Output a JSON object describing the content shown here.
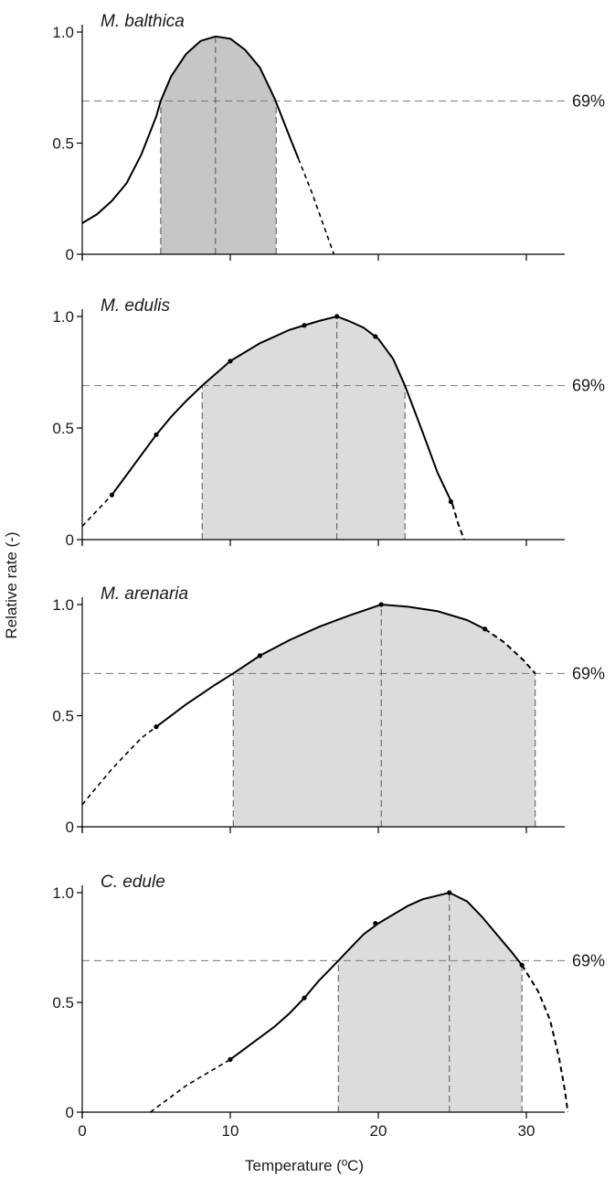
{
  "figure": {
    "xlabel": "Temperature (ºC)",
    "ylabel": "Relative rate (-)"
  },
  "chart_data": [
    {
      "type": "line",
      "title": "M. balthica",
      "xlim": [
        0,
        35
      ],
      "ylim": [
        0,
        1.0
      ],
      "yticks": [
        "0",
        "0.5",
        "1.0"
      ],
      "xticks": [
        0,
        10,
        20,
        30
      ],
      "xtick_labels_shown": false,
      "fill_color": "#c6c6c6",
      "reference_line": {
        "y": 0.69,
        "label": "69%"
      },
      "optimum_x": 9.0,
      "range_69": [
        5.3,
        13.1
      ],
      "curve_solid": [
        [
          0,
          0.14
        ],
        [
          1,
          0.18
        ],
        [
          2,
          0.24
        ],
        [
          3,
          0.32
        ],
        [
          4,
          0.45
        ],
        [
          5,
          0.62
        ],
        [
          5.3,
          0.69
        ],
        [
          6,
          0.8
        ],
        [
          7,
          0.9
        ],
        [
          8,
          0.96
        ],
        [
          9,
          0.98
        ],
        [
          10,
          0.97
        ],
        [
          11,
          0.92
        ],
        [
          12,
          0.84
        ],
        [
          13,
          0.7
        ],
        [
          14,
          0.53
        ],
        [
          14.6,
          0.43
        ]
      ],
      "curve_dashed": [
        [
          14.6,
          0.43
        ],
        [
          15.5,
          0.28
        ],
        [
          16.3,
          0.13
        ],
        [
          17.0,
          0.0
        ]
      ],
      "points": []
    },
    {
      "type": "line",
      "title": "M. edulis",
      "xlim": [
        0,
        35
      ],
      "ylim": [
        0,
        1.0
      ],
      "yticks": [
        "0",
        "0.5",
        "1.0"
      ],
      "xticks": [
        0,
        10,
        20,
        30
      ],
      "xtick_labels_shown": false,
      "fill_color": "#dcdcdc",
      "reference_line": {
        "y": 0.69,
        "label": "69%"
      },
      "optimum_x": 17.2,
      "range_69": [
        8.1,
        21.8
      ],
      "curve_solid": [
        [
          2,
          0.2
        ],
        [
          3,
          0.29
        ],
        [
          4,
          0.38
        ],
        [
          5,
          0.47
        ],
        [
          6,
          0.55
        ],
        [
          7,
          0.62
        ],
        [
          8.1,
          0.69
        ],
        [
          10,
          0.8
        ],
        [
          12,
          0.88
        ],
        [
          14,
          0.94
        ],
        [
          15,
          0.96
        ],
        [
          16,
          0.98
        ],
        [
          17.2,
          1.0
        ],
        [
          18,
          0.98
        ],
        [
          19,
          0.95
        ],
        [
          20,
          0.9
        ],
        [
          21,
          0.81
        ],
        [
          21.8,
          0.69
        ],
        [
          23,
          0.48
        ],
        [
          24,
          0.3
        ],
        [
          25,
          0.16
        ]
      ],
      "curve_dashed": [
        [
          0,
          0.06
        ],
        [
          1,
          0.13
        ],
        [
          2,
          0.2
        ]
      ],
      "curve_dashed_end": [
        [
          25,
          0.16
        ],
        [
          25.4,
          0.07
        ],
        [
          25.8,
          0.0
        ]
      ],
      "points": [
        [
          2,
          0.2
        ],
        [
          5,
          0.47
        ],
        [
          10,
          0.8
        ],
        [
          15,
          0.96
        ],
        [
          17.2,
          1.0
        ],
        [
          19.8,
          0.91
        ],
        [
          24.9,
          0.17
        ]
      ]
    },
    {
      "type": "line",
      "title": "M. arenaria",
      "xlim": [
        0,
        35
      ],
      "ylim": [
        0,
        1.0
      ],
      "yticks": [
        "0",
        "0.5",
        "1.0"
      ],
      "xticks": [
        0,
        10,
        20,
        30
      ],
      "xtick_labels_shown": false,
      "fill_color": "#dcdcdc",
      "reference_line": {
        "y": 0.69,
        "label": "69%"
      },
      "optimum_x": 20.2,
      "range_69": [
        10.2,
        30.6
      ],
      "curve_solid": [
        [
          5,
          0.45
        ],
        [
          7,
          0.55
        ],
        [
          9,
          0.64
        ],
        [
          10.2,
          0.69
        ],
        [
          12,
          0.77
        ],
        [
          14,
          0.84
        ],
        [
          16,
          0.9
        ],
        [
          18,
          0.95
        ],
        [
          20.2,
          1.0
        ],
        [
          22,
          0.99
        ],
        [
          24,
          0.97
        ],
        [
          26,
          0.93
        ],
        [
          27.2,
          0.89
        ]
      ],
      "curve_dashed": [
        [
          0,
          0.1
        ],
        [
          1,
          0.18
        ],
        [
          2,
          0.26
        ],
        [
          3,
          0.33
        ],
        [
          4,
          0.4
        ],
        [
          5,
          0.45
        ]
      ],
      "curve_dashed_end": [
        [
          27.2,
          0.89
        ],
        [
          28.5,
          0.83
        ],
        [
          29.8,
          0.75
        ],
        [
          30.6,
          0.69
        ]
      ],
      "points": [
        [
          5,
          0.45
        ],
        [
          12,
          0.77
        ],
        [
          20.2,
          1.0
        ],
        [
          27.2,
          0.89
        ]
      ]
    },
    {
      "type": "line",
      "title": "C. edule",
      "xlim": [
        0,
        35
      ],
      "ylim": [
        0,
        1.0
      ],
      "yticks": [
        "0",
        "0.5",
        "1.0"
      ],
      "xticks": [
        0,
        10,
        20,
        30
      ],
      "xtick_labels": [
        "0",
        "10",
        "20",
        "30"
      ],
      "xtick_labels_shown": true,
      "fill_color": "#dcdcdc",
      "reference_line": {
        "y": 0.69,
        "label": "69%"
      },
      "optimum_x": 24.8,
      "range_69": [
        17.3,
        29.7
      ],
      "curve_solid": [
        [
          10,
          0.24
        ],
        [
          11,
          0.29
        ],
        [
          12,
          0.34
        ],
        [
          13,
          0.39
        ],
        [
          14,
          0.45
        ],
        [
          15,
          0.52
        ],
        [
          16,
          0.6
        ],
        [
          17.3,
          0.69
        ],
        [
          18,
          0.74
        ],
        [
          19,
          0.81
        ],
        [
          20,
          0.86
        ],
        [
          21,
          0.9
        ],
        [
          22,
          0.94
        ],
        [
          23,
          0.97
        ],
        [
          24.8,
          1.0
        ],
        [
          26,
          0.96
        ],
        [
          27,
          0.89
        ],
        [
          28,
          0.81
        ],
        [
          29,
          0.73
        ],
        [
          29.7,
          0.67
        ]
      ],
      "curve_dashed": [
        [
          4.6,
          0.0
        ],
        [
          6,
          0.07
        ],
        [
          7,
          0.12
        ],
        [
          8,
          0.16
        ],
        [
          9,
          0.2
        ],
        [
          10,
          0.24
        ]
      ],
      "curve_dashed_end": [
        [
          29.7,
          0.67
        ],
        [
          30.8,
          0.55
        ],
        [
          31.6,
          0.42
        ],
        [
          32.2,
          0.25
        ],
        [
          32.6,
          0.1
        ],
        [
          32.8,
          0.0
        ]
      ],
      "points": [
        [
          10,
          0.24
        ],
        [
          15,
          0.52
        ],
        [
          19.8,
          0.86
        ],
        [
          24.8,
          1.0
        ],
        [
          29.7,
          0.67
        ]
      ]
    }
  ]
}
